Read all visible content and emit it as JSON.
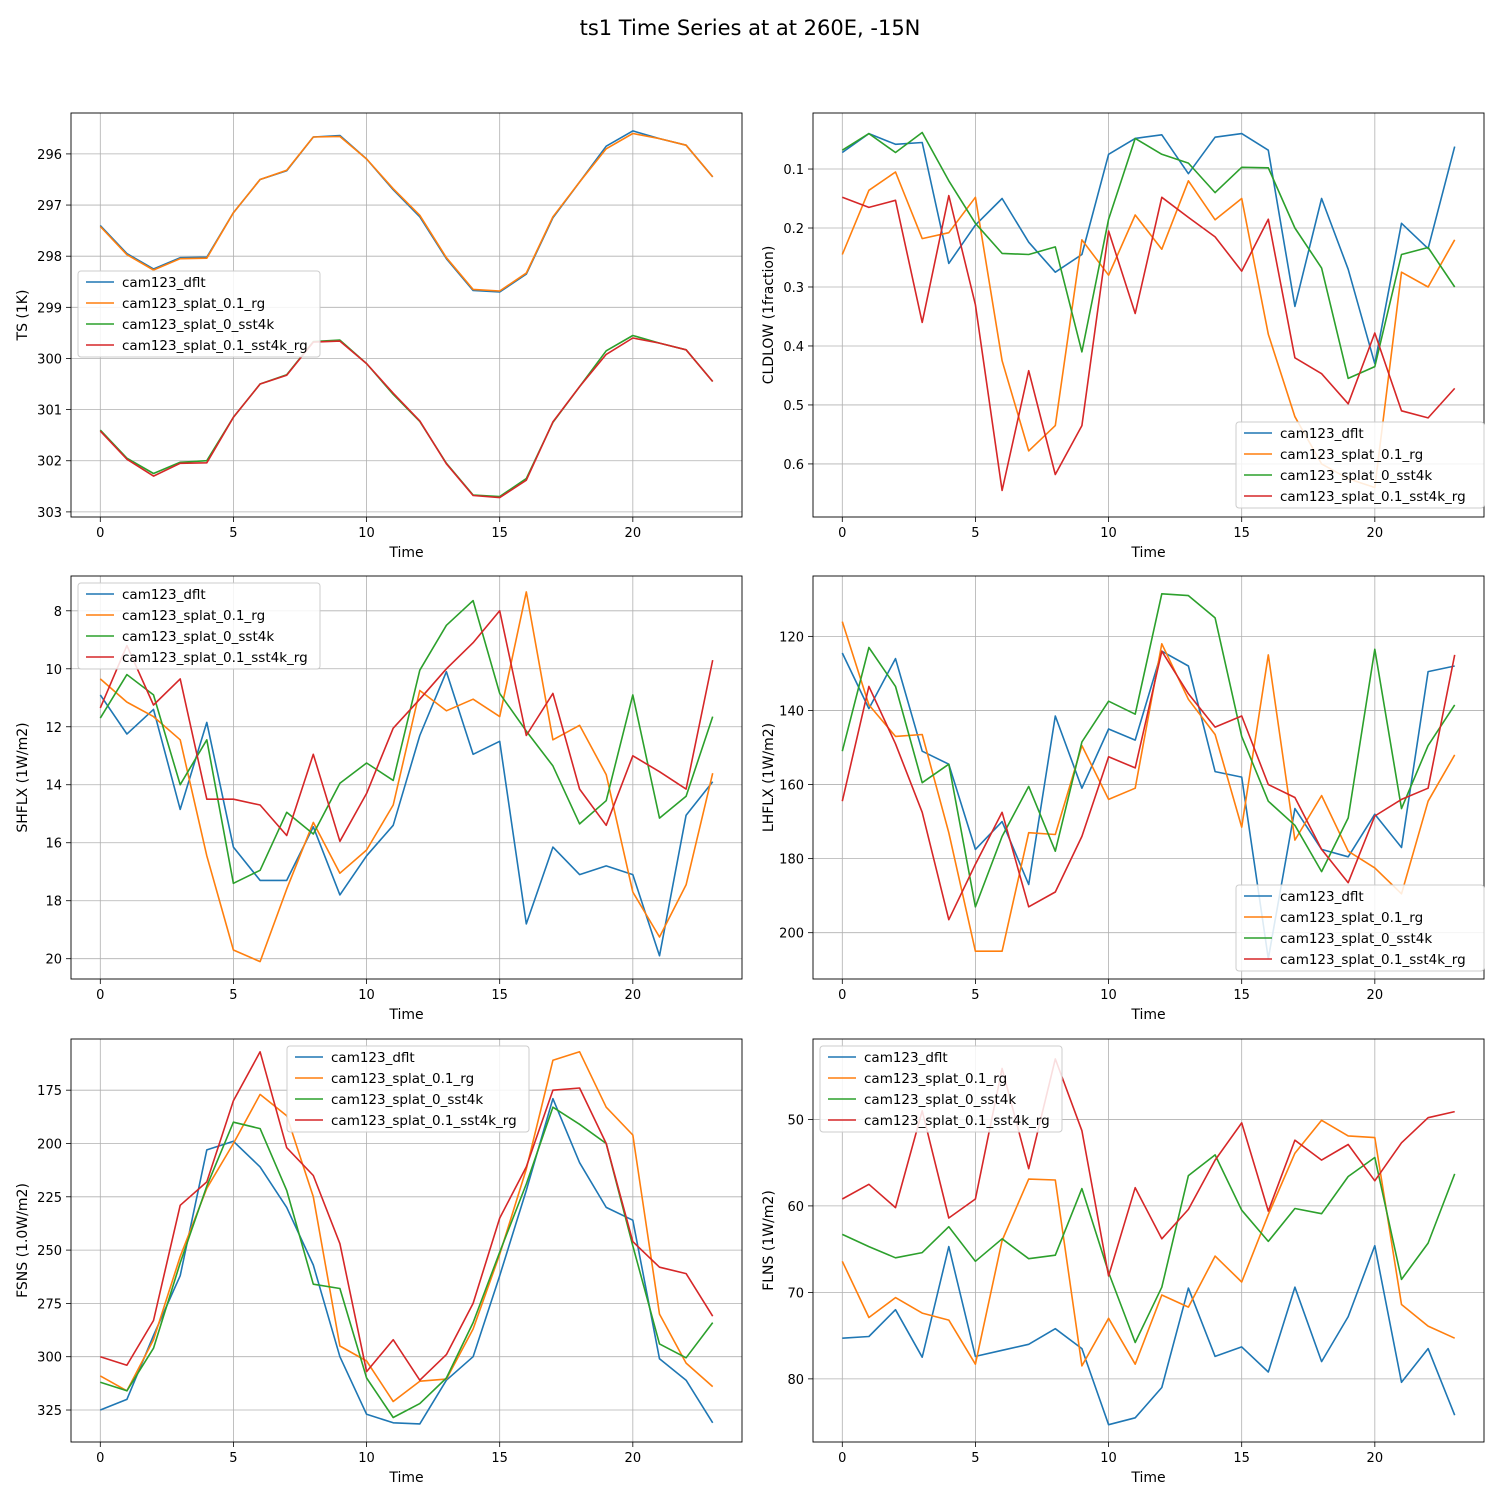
{
  "title": "ts1 Time Series at at 260E, -15N",
  "legend_labels": [
    "cam123_dflt",
    "cam123_splat_0.1_rg",
    "cam123_splat_0_sst4k",
    "cam123_splat_0.1_sst4k_rg"
  ],
  "colors": [
    "#1f77b4",
    "#ff7f0e",
    "#2ca02c",
    "#d62728"
  ],
  "chart_data": [
    {
      "type": "line",
      "ylabel": "TS (1K)",
      "xlabel": "Time",
      "x": [
        0,
        1,
        2,
        3,
        4,
        5,
        6,
        7,
        8,
        9,
        10,
        11,
        12,
        13,
        14,
        15,
        16,
        17,
        18,
        19,
        20,
        21,
        22,
        23
      ],
      "xlim": [
        -1.1,
        24.1
      ],
      "xticks": [
        0,
        5,
        10,
        15,
        20
      ],
      "ylim": [
        303.1,
        295.2
      ],
      "yticks": [
        296,
        297,
        298,
        299,
        300,
        301,
        302,
        303
      ],
      "grid": true,
      "legend": "center-left",
      "series": [
        {
          "name": "cam123_dflt",
          "values": [
            297.4,
            297.95,
            298.25,
            298.03,
            298.02,
            297.15,
            296.5,
            296.33,
            295.67,
            295.64,
            296.1,
            296.7,
            297.23,
            298.05,
            298.67,
            298.7,
            298.35,
            297.25,
            296.55,
            295.85,
            295.55,
            295.7,
            295.83,
            296.45
          ]
        },
        {
          "name": "cam123_splat_0.1_rg",
          "values": [
            297.42,
            297.97,
            298.27,
            298.05,
            298.04,
            297.15,
            296.5,
            296.32,
            295.67,
            295.66,
            296.1,
            296.68,
            297.2,
            298.03,
            298.65,
            298.68,
            298.33,
            297.23,
            296.55,
            295.9,
            295.6,
            295.7,
            295.83,
            296.45
          ]
        },
        {
          "name": "cam123_splat_0_sst4k",
          "values": [
            301.4,
            301.95,
            302.25,
            302.03,
            302.0,
            301.15,
            300.5,
            300.32,
            299.67,
            299.64,
            300.1,
            300.7,
            301.23,
            302.05,
            302.67,
            302.7,
            302.35,
            301.25,
            300.55,
            299.85,
            299.55,
            299.7,
            299.83,
            300.45
          ]
        },
        {
          "name": "cam123_splat_0.1_sst4k_rg",
          "values": [
            301.42,
            301.97,
            302.3,
            302.05,
            302.04,
            301.15,
            300.5,
            300.33,
            299.68,
            299.66,
            300.1,
            300.68,
            301.22,
            302.06,
            302.68,
            302.72,
            302.38,
            301.24,
            300.55,
            299.92,
            299.6,
            299.7,
            299.83,
            300.45
          ]
        }
      ]
    },
    {
      "type": "line",
      "ylabel": "CLDLOW (1fraction)",
      "xlabel": "Time",
      "x": [
        0,
        1,
        2,
        3,
        4,
        5,
        6,
        7,
        8,
        9,
        10,
        11,
        12,
        13,
        14,
        15,
        16,
        17,
        18,
        19,
        20,
        21,
        22,
        23
      ],
      "xlim": [
        -1.1,
        24.1
      ],
      "xticks": [
        0,
        5,
        10,
        15,
        20
      ],
      "ylim": [
        0.69,
        0.005
      ],
      "yticks": [
        0.1,
        0.2,
        0.3,
        0.4,
        0.5,
        0.6
      ],
      "yticklabels": [
        "0.1",
        "0.2",
        "0.3",
        "0.4",
        "0.5",
        "0.6"
      ],
      "grid": true,
      "legend": "lower-right",
      "series": [
        {
          "name": "cam123_dflt",
          "values": [
            0.072,
            0.04,
            0.058,
            0.055,
            0.26,
            0.195,
            0.15,
            0.224,
            0.275,
            0.245,
            0.075,
            0.048,
            0.042,
            0.108,
            0.046,
            0.04,
            0.068,
            0.333,
            0.15,
            0.27,
            0.43,
            0.192,
            0.235,
            0.062
          ]
        },
        {
          "name": "cam123_splat_0.1_rg",
          "values": [
            0.245,
            0.136,
            0.105,
            0.218,
            0.208,
            0.148,
            0.425,
            0.578,
            0.535,
            0.22,
            0.28,
            0.178,
            0.236,
            0.12,
            0.186,
            0.15,
            0.38,
            0.52,
            0.6,
            0.625,
            0.64,
            0.275,
            0.3,
            0.22
          ]
        },
        {
          "name": "cam123_splat_0_sst4k",
          "values": [
            0.068,
            0.04,
            0.072,
            0.038,
            0.12,
            0.192,
            0.243,
            0.245,
            0.232,
            0.41,
            0.185,
            0.048,
            0.075,
            0.09,
            0.14,
            0.097,
            0.098,
            0.2,
            0.268,
            0.455,
            0.435,
            0.245,
            0.233,
            0.3
          ]
        },
        {
          "name": "cam123_splat_0.1_sst4k_rg",
          "values": [
            0.148,
            0.165,
            0.153,
            0.36,
            0.145,
            0.33,
            0.645,
            0.442,
            0.618,
            0.535,
            0.205,
            0.345,
            0.148,
            0.182,
            0.215,
            0.273,
            0.185,
            0.42,
            0.447,
            0.498,
            0.378,
            0.51,
            0.522,
            0.472
          ]
        }
      ]
    },
    {
      "type": "line",
      "ylabel": "SHFLX (1W/m2)",
      "xlabel": "Time",
      "x": [
        0,
        1,
        2,
        3,
        4,
        5,
        6,
        7,
        8,
        9,
        10,
        11,
        12,
        13,
        14,
        15,
        16,
        17,
        18,
        19,
        20,
        21,
        22,
        23
      ],
      "xlim": [
        -1.1,
        24.1
      ],
      "xticks": [
        0,
        5,
        10,
        15,
        20
      ],
      "ylim": [
        20.7,
        6.8
      ],
      "yticks": [
        8,
        10,
        12,
        14,
        16,
        18,
        20
      ],
      "grid": true,
      "legend": "upper-left",
      "series": [
        {
          "name": "cam123_dflt",
          "values": [
            10.9,
            12.25,
            11.4,
            14.85,
            11.85,
            16.15,
            17.3,
            17.3,
            15.45,
            17.8,
            16.45,
            15.4,
            12.3,
            10.1,
            12.95,
            12.5,
            18.8,
            16.15,
            17.1,
            16.8,
            17.1,
            19.9,
            15.05,
            13.9
          ]
        },
        {
          "name": "cam123_splat_0.1_rg",
          "values": [
            10.35,
            11.15,
            11.65,
            12.45,
            16.45,
            19.7,
            20.1,
            17.6,
            15.3,
            17.05,
            16.25,
            14.7,
            10.75,
            11.45,
            11.05,
            11.65,
            7.35,
            12.45,
            11.95,
            13.65,
            17.7,
            19.25,
            17.45,
            13.6
          ]
        },
        {
          "name": "cam123_splat_0_sst4k",
          "values": [
            11.7,
            10.2,
            10.9,
            14.0,
            12.45,
            17.4,
            16.95,
            14.95,
            15.7,
            13.95,
            13.25,
            13.85,
            10.05,
            8.5,
            7.65,
            10.85,
            12.15,
            13.35,
            15.35,
            14.55,
            10.9,
            15.15,
            14.4,
            11.65
          ]
        },
        {
          "name": "cam123_splat_0.1_sst4k_rg",
          "values": [
            11.35,
            9.2,
            11.25,
            10.35,
            14.5,
            14.5,
            14.7,
            15.75,
            12.95,
            15.95,
            14.3,
            12.05,
            11.05,
            10.0,
            9.1,
            8.0,
            12.3,
            10.85,
            14.15,
            15.4,
            13.0,
            13.55,
            14.15,
            9.7
          ]
        }
      ]
    },
    {
      "type": "line",
      "ylabel": "LHFLX (1W/m2)",
      "xlabel": "Time",
      "x": [
        0,
        1,
        2,
        3,
        4,
        5,
        6,
        7,
        8,
        9,
        10,
        11,
        12,
        13,
        14,
        15,
        16,
        17,
        18,
        19,
        20,
        21,
        22,
        23
      ],
      "xlim": [
        -1.1,
        24.1
      ],
      "xticks": [
        0,
        5,
        10,
        15,
        20
      ],
      "ylim": [
        212.5,
        103.7
      ],
      "yticks": [
        120,
        140,
        160,
        180,
        200
      ],
      "grid": true,
      "legend": "lower-right",
      "series": [
        {
          "name": "cam123_dflt",
          "values": [
            124.5,
            139.5,
            126.0,
            151.0,
            154.5,
            177.5,
            170.0,
            187.0,
            141.5,
            161.0,
            145.0,
            148.0,
            124.0,
            128.0,
            156.5,
            158.0,
            207.0,
            166.5,
            177.5,
            179.5,
            168.0,
            177.0,
            129.5,
            128.0
          ]
        },
        {
          "name": "cam123_splat_0.1_rg",
          "values": [
            116.0,
            138.5,
            147.0,
            146.5,
            173.0,
            205.0,
            205.0,
            173.0,
            173.5,
            149.5,
            164.0,
            161.0,
            122.0,
            137.0,
            146.5,
            171.5,
            125.0,
            175.0,
            163.0,
            178.0,
            182.5,
            189.5,
            164.5,
            152.0
          ]
        },
        {
          "name": "cam123_splat_0_sst4k",
          "values": [
            151.0,
            123.0,
            133.5,
            159.5,
            154.5,
            193.0,
            174.0,
            160.5,
            178.0,
            148.5,
            137.5,
            141.0,
            108.5,
            109.0,
            115.0,
            147.0,
            164.5,
            171.0,
            183.5,
            169.0,
            123.5,
            166.5,
            149.5,
            138.5
          ]
        },
        {
          "name": "cam123_splat_0.1_sst4k_rg",
          "values": [
            164.5,
            133.5,
            149.0,
            167.5,
            196.5,
            181.5,
            167.5,
            193.0,
            189.0,
            174.0,
            152.5,
            155.5,
            124.0,
            135.5,
            144.5,
            141.5,
            160.0,
            163.5,
            177.5,
            186.5,
            168.5,
            164.0,
            161.0,
            125.0
          ]
        }
      ]
    },
    {
      "type": "line",
      "ylabel": "FSNS (1.0W/m2)",
      "xlabel": "Time",
      "x": [
        0,
        1,
        2,
        3,
        4,
        5,
        6,
        7,
        8,
        9,
        10,
        11,
        12,
        13,
        14,
        15,
        16,
        17,
        18,
        19,
        20,
        21,
        22,
        23
      ],
      "xlim": [
        -1.1,
        24.1
      ],
      "xticks": [
        0,
        5,
        10,
        15,
        20
      ],
      "ylim": [
        340,
        151
      ],
      "yticks": [
        175,
        200,
        225,
        250,
        275,
        300,
        325
      ],
      "grid": true,
      "legend": "top-center",
      "series": [
        {
          "name": "cam123_dflt",
          "values": [
            325.0,
            320.0,
            290.0,
            262.0,
            203.0,
            199.0,
            211.0,
            230.0,
            257.0,
            300.0,
            327.0,
            331.0,
            331.5,
            311.0,
            300.0,
            262.0,
            222.0,
            179.0,
            209.0,
            230.0,
            236.0,
            301.0,
            311.0,
            331.0
          ]
        },
        {
          "name": "cam123_splat_0.1_rg",
          "values": [
            309.0,
            316.0,
            292.0,
            253.0,
            221.0,
            200.0,
            177.0,
            187.0,
            225.0,
            295.0,
            302.0,
            321.0,
            311.5,
            310.5,
            287.0,
            252.0,
            212.0,
            161.0,
            157.0,
            183.0,
            196.0,
            280.0,
            303.0,
            314.0
          ]
        },
        {
          "name": "cam123_splat_0_sst4k",
          "values": [
            312.0,
            316.0,
            296.0,
            256.0,
            220.0,
            190.0,
            193.0,
            222.0,
            266.0,
            268.0,
            310.0,
            328.5,
            322.0,
            310.0,
            284.0,
            251.0,
            219.0,
            183.0,
            191.0,
            200.0,
            248.0,
            294.0,
            300.5,
            284.0
          ]
        },
        {
          "name": "cam123_splat_0.1_sst4k_rg",
          "values": [
            300.0,
            304.0,
            283.0,
            229.0,
            218.0,
            180.0,
            157.0,
            202.0,
            215.0,
            247.0,
            307.0,
            292.0,
            311.0,
            299.0,
            275.0,
            235.0,
            211.0,
            175.0,
            174.0,
            200.0,
            246.0,
            258.0,
            261.0,
            281.0
          ]
        }
      ]
    },
    {
      "type": "line",
      "ylabel": "FLNS (1W/m2)",
      "xlabel": "Time",
      "x": [
        0,
        1,
        2,
        3,
        4,
        5,
        6,
        7,
        8,
        9,
        10,
        11,
        12,
        13,
        14,
        15,
        16,
        17,
        18,
        19,
        20,
        21,
        22,
        23
      ],
      "xlim": [
        -1.1,
        24.1
      ],
      "xticks": [
        0,
        5,
        10,
        15,
        20
      ],
      "ylim": [
        87.3,
        40.7
      ],
      "yticks": [
        50,
        60,
        70,
        80
      ],
      "grid": true,
      "legend": "upper-left",
      "series": [
        {
          "name": "cam123_dflt",
          "values": [
            75.3,
            75.1,
            72.0,
            77.5,
            64.7,
            77.4,
            76.7,
            76.0,
            74.2,
            76.5,
            85.3,
            84.5,
            81.0,
            69.5,
            77.4,
            76.3,
            79.2,
            69.4,
            78.0,
            72.8,
            64.6,
            80.4,
            76.5,
            84.2
          ]
        },
        {
          "name": "cam123_splat_0.1_rg",
          "values": [
            66.4,
            72.9,
            70.6,
            72.4,
            73.2,
            78.3,
            64.0,
            56.9,
            57.0,
            78.5,
            73.0,
            78.3,
            70.3,
            71.7,
            65.8,
            68.8,
            61.0,
            53.9,
            50.1,
            51.9,
            52.1,
            71.4,
            73.9,
            75.3
          ]
        },
        {
          "name": "cam123_splat_0_sst4k",
          "values": [
            63.3,
            64.7,
            66.0,
            65.4,
            62.4,
            66.4,
            63.8,
            66.1,
            65.7,
            58.0,
            67.7,
            75.8,
            69.4,
            56.5,
            54.1,
            60.5,
            64.1,
            60.3,
            60.9,
            56.6,
            54.4,
            68.5,
            64.3,
            56.3
          ]
        },
        {
          "name": "cam123_splat_0.1_sst4k_rg",
          "values": [
            59.2,
            57.5,
            60.2,
            49.0,
            61.4,
            59.2,
            44.1,
            55.7,
            43.0,
            51.3,
            68.1,
            57.9,
            63.8,
            60.4,
            54.7,
            50.4,
            60.6,
            52.4,
            54.7,
            52.9,
            57.1,
            52.7,
            49.8,
            49.1
          ]
        }
      ]
    }
  ]
}
